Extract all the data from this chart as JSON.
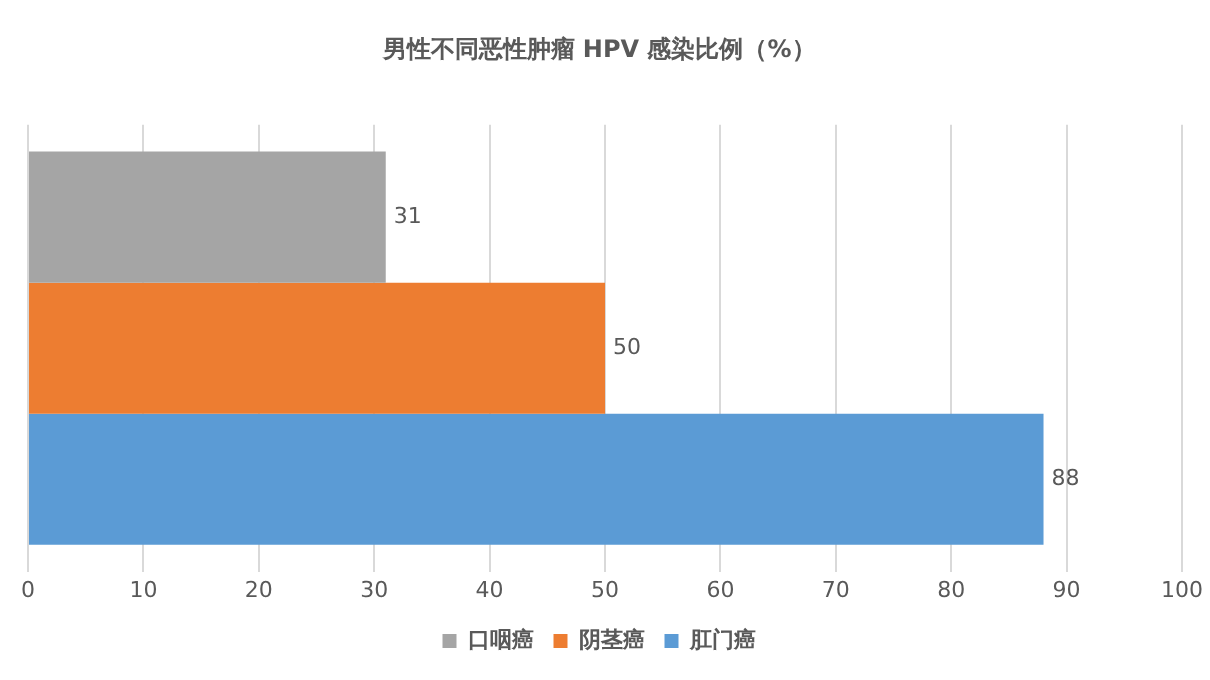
{
  "chart_data": {
    "type": "bar",
    "orientation": "horizontal",
    "title": "男性不同恶性肿瘤 HPV 感染比例（%）",
    "categories": [
      null
    ],
    "series": [
      {
        "name": "口咽癌",
        "color": "#a5a5a5",
        "values": [
          31
        ]
      },
      {
        "name": "阴茎癌",
        "color": "#ed7d31",
        "values": [
          50
        ]
      },
      {
        "name": "肛门癌",
        "color": "#5b9bd5",
        "values": [
          88
        ]
      }
    ],
    "xlim": [
      0,
      100
    ],
    "xticks": [
      0,
      10,
      20,
      30,
      40,
      50,
      60,
      70,
      80,
      90,
      100
    ],
    "grid": "x",
    "legend": "bottom",
    "data_labels": true
  }
}
